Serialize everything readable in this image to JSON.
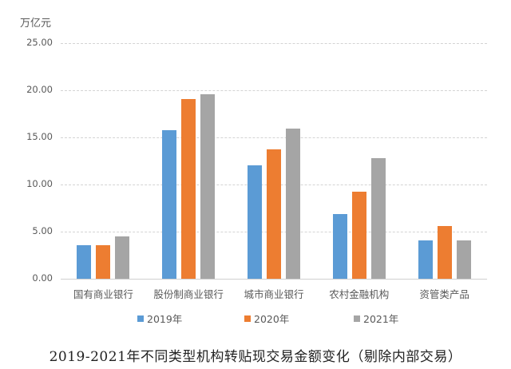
{
  "chart_data": {
    "type": "bar",
    "title": "2019-2021年不同类型机构转贴现交易金额变化（剔除内部交易）",
    "xlabel": "",
    "ylabel": "万亿元",
    "ylim": [
      0,
      25
    ],
    "yticks": [
      "0.00",
      "5.00",
      "10.00",
      "15.00",
      "20.00",
      "25.00"
    ],
    "grid": true,
    "legend_position": "bottom",
    "categories": [
      "国有商业银行",
      "股份制商业银行",
      "城市商业银行",
      "农村金融机构",
      "资管类产品"
    ],
    "series": [
      {
        "name": "2019年",
        "color": "#5b9bd5",
        "values": [
          3.6,
          15.8,
          12.0,
          6.9,
          4.1
        ]
      },
      {
        "name": "2020年",
        "color": "#ed7d31",
        "values": [
          3.6,
          19.1,
          13.7,
          9.2,
          5.6
        ]
      },
      {
        "name": "2021年",
        "color": "#a5a5a5",
        "values": [
          4.5,
          19.6,
          15.9,
          12.8,
          4.1
        ]
      }
    ]
  }
}
